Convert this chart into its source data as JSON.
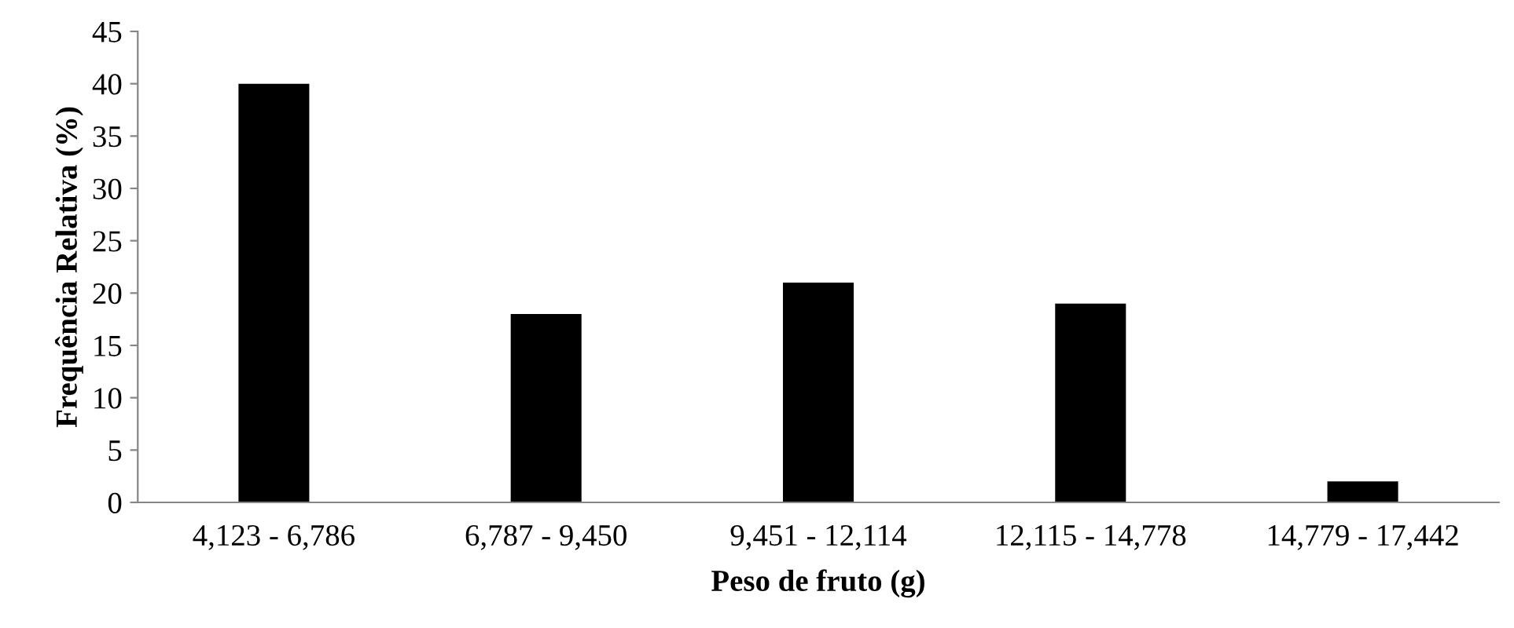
{
  "chart_data": {
    "type": "bar",
    "xlabel": "Peso de fruto (g)",
    "ylabel": "Frequência Relativa (%)",
    "categories": [
      "4,123 - 6,786",
      "6,787 - 9,450",
      "9,451 - 12,114",
      "12,115 - 14,778",
      "14,779 - 17,442"
    ],
    "values": [
      40,
      18,
      21,
      19,
      2
    ],
    "color": "#000000",
    "ylim": [
      0,
      45
    ],
    "yticks": [
      0,
      5,
      10,
      15,
      20,
      25,
      30,
      35,
      40,
      45
    ],
    "grid": false,
    "legend": false
  }
}
